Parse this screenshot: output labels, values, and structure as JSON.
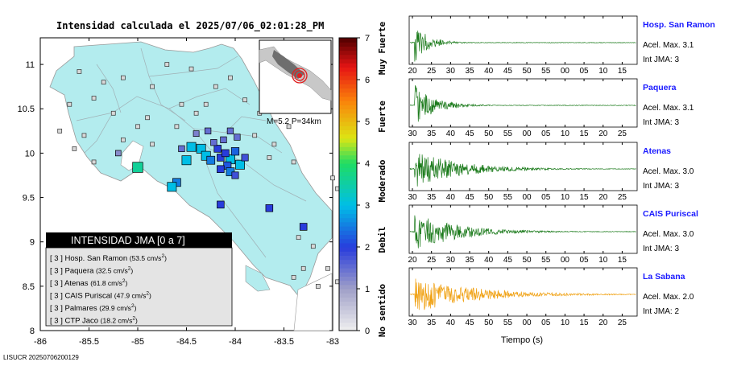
{
  "map": {
    "title": "Intensidad calculada el 2025/07/06_02:01:28_PM",
    "x_ticks": [
      "-86",
      "-85.5",
      "-85",
      "-84.5",
      "-84",
      "-83.5",
      "-83"
    ],
    "y_ticks": [
      "11",
      "10.5",
      "10",
      "9.5",
      "9",
      "8.5",
      "8"
    ],
    "xlim": [
      -86,
      -83
    ],
    "ylim": [
      8,
      11.3
    ],
    "footer": "LISUCR 20250706200129",
    "inset_label": "M=5.2 P=34km"
  },
  "colorbar": {
    "ticks": [
      "0",
      "1",
      "2",
      "3",
      "4",
      "5",
      "6",
      "7"
    ],
    "range": [
      0,
      7
    ],
    "labels": [
      "No sentido",
      "Debil",
      "Moderado",
      "Fuerte",
      "Muy Fuerte"
    ]
  },
  "legend": {
    "title": "INTENSIDAD JMA [0 a 7]",
    "items": [
      {
        "level": "[ 3 ]",
        "name": "Hosp. San Ramon",
        "value": "(53.5 cm/s",
        "unit_sup": "2",
        ")": ")"
      },
      {
        "level": "[ 3 ]",
        "name": "Paquera",
        "value": "(32.5 cm/s",
        "unit_sup": "2",
        ")": ")"
      },
      {
        "level": "[ 3 ]",
        "name": "Atenas",
        "value": "(61.8 cm/s",
        "unit_sup": "2",
        ")": ")"
      },
      {
        "level": "[ 3 ]",
        "name": "CAIS Puriscal",
        "value": "(47.9 cm/s",
        "unit_sup": "2",
        ")": ")"
      },
      {
        "level": "[ 3 ]",
        "name": "Palmares",
        "value": "(29.9 cm/s",
        "unit_sup": "2",
        ")": ")"
      },
      {
        "level": "[ 3 ]",
        "name": "CTP Jaco",
        "value": "(18.2 cm/s",
        "unit_sup": "2",
        ")": ")"
      }
    ]
  },
  "stations_map": [
    {
      "lon": -84.45,
      "lat": 10.07,
      "int": 3
    },
    {
      "lon": -84.35,
      "lat": 10.05,
      "int": 3
    },
    {
      "lon": -84.3,
      "lat": 9.97,
      "int": 3
    },
    {
      "lon": -84.5,
      "lat": 9.92,
      "int": 3
    },
    {
      "lon": -84.05,
      "lat": 9.93,
      "int": 3
    },
    {
      "lon": -83.95,
      "lat": 9.87,
      "int": 3
    },
    {
      "lon": -84.25,
      "lat": 9.92,
      "int": 2.5
    },
    {
      "lon": -84.15,
      "lat": 9.95,
      "int": 2
    },
    {
      "lon": -84.1,
      "lat": 10.0,
      "int": 2
    },
    {
      "lon": -84.0,
      "lat": 10.02,
      "int": 2.3
    },
    {
      "lon": -84.18,
      "lat": 10.05,
      "int": 2
    },
    {
      "lon": -84.08,
      "lat": 9.86,
      "int": 2.2
    },
    {
      "lon": -84.15,
      "lat": 9.82,
      "int": 2
    },
    {
      "lon": -84.05,
      "lat": 9.79,
      "int": 2.5
    },
    {
      "lon": -85.0,
      "lat": 9.84,
      "int": 3.6
    },
    {
      "lon": -84.6,
      "lat": 9.67,
      "int": 2.5
    },
    {
      "lon": -84.65,
      "lat": 9.62,
      "int": 3
    },
    {
      "lon": -84.15,
      "lat": 9.42,
      "int": 2
    },
    {
      "lon": -83.65,
      "lat": 9.38,
      "int": 2
    },
    {
      "lon": -83.3,
      "lat": 9.17,
      "int": 2
    },
    {
      "lon": -84.22,
      "lat": 10.12,
      "int": 1.5
    },
    {
      "lon": -84.12,
      "lat": 10.15,
      "int": 1.5
    },
    {
      "lon": -84.05,
      "lat": 10.25,
      "int": 1.5
    },
    {
      "lon": -83.98,
      "lat": 10.18,
      "int": 1.5
    },
    {
      "lon": -84.28,
      "lat": 10.25,
      "int": 1.5
    },
    {
      "lon": -84.4,
      "lat": 10.22,
      "int": 1.3
    },
    {
      "lon": -84.55,
      "lat": 10.05,
      "int": 1.5
    },
    {
      "lon": -85.2,
      "lat": 10.0,
      "int": 1.2
    },
    {
      "lon": -83.9,
      "lat": 9.95,
      "int": 1.8
    },
    {
      "lon": -84.0,
      "lat": 9.75,
      "int": 1.8
    }
  ],
  "stations_gray": [
    [
      -85.6,
      10.92
    ],
    [
      -85.45,
      10.62
    ],
    [
      -85.35,
      10.8
    ],
    [
      -85.7,
      10.55
    ],
    [
      -85.15,
      10.85
    ],
    [
      -84.85,
      10.75
    ],
    [
      -84.7,
      11.0
    ],
    [
      -84.45,
      10.95
    ],
    [
      -84.2,
      10.75
    ],
    [
      -84.05,
      10.85
    ],
    [
      -83.9,
      10.6
    ],
    [
      -83.75,
      10.45
    ],
    [
      -83.55,
      10.5
    ],
    [
      -83.45,
      10.3
    ],
    [
      -83.6,
      10.1
    ],
    [
      -83.8,
      10.2
    ],
    [
      -85.25,
      10.45
    ],
    [
      -85.55,
      10.2
    ],
    [
      -85.65,
      10.05
    ],
    [
      -85.45,
      9.9
    ],
    [
      -85.8,
      10.25
    ],
    [
      -85.0,
      10.3
    ],
    [
      -84.85,
      10.1
    ],
    [
      -84.9,
      10.4
    ],
    [
      -84.6,
      10.3
    ],
    [
      -83.4,
      9.9
    ],
    [
      -83.0,
      9.72
    ],
    [
      -82.95,
      9.6
    ],
    [
      -83.35,
      9.05
    ],
    [
      -83.2,
      8.95
    ],
    [
      -83.05,
      8.7
    ],
    [
      -83.3,
      8.7
    ],
    [
      -83.4,
      8.6
    ],
    [
      -83.15,
      8.5
    ],
    [
      -82.95,
      8.55
    ],
    [
      -84.4,
      10.45
    ],
    [
      -84.55,
      10.55
    ],
    [
      -84.3,
      10.55
    ],
    [
      -83.65,
      9.95
    ],
    [
      -85.15,
      10.15
    ]
  ],
  "waveforms": {
    "xlabel": "Tiempo (s)",
    "panels": [
      {
        "name": "Hosp. San Ramon",
        "acel": "Acel. Max. 3.1",
        "jma": "Int JMA: 3",
        "color": "#1a7a1a",
        "ticks": [
          "20",
          "25",
          "30",
          "35",
          "40",
          "45",
          "50",
          "55",
          "00",
          "05",
          "10",
          "15"
        ],
        "onset": 0.02,
        "amp": 1.0,
        "decay": 0.06
      },
      {
        "name": "Paquera",
        "acel": "Acel. Max. 3.1",
        "jma": "Int JMA: 3",
        "color": "#1a7a1a",
        "ticks": [
          "30",
          "35",
          "40",
          "45",
          "50",
          "55",
          "00",
          "05",
          "10",
          "15",
          "20",
          "25"
        ],
        "onset": 0.02,
        "amp": 1.0,
        "decay": 0.09
      },
      {
        "name": "Atenas",
        "acel": "Acel. Max. 3.0",
        "jma": "Int JMA: 3",
        "color": "#1a7a1a",
        "ticks": [
          "30",
          "35",
          "40",
          "45",
          "50",
          "55",
          "00",
          "05",
          "10",
          "15",
          "20",
          "25"
        ],
        "onset": 0.02,
        "amp": 0.9,
        "decay": 0.2
      },
      {
        "name": "CAIS Puriscal",
        "acel": "Acel. Max. 3.0",
        "jma": "Int JMA: 3",
        "color": "#1a7a1a",
        "ticks": [
          "20",
          "25",
          "30",
          "35",
          "40",
          "45",
          "50",
          "55",
          "00",
          "05",
          "10",
          "15"
        ],
        "onset": 0.02,
        "amp": 1.0,
        "decay": 0.18
      },
      {
        "name": "La Sabana",
        "acel": "Acel. Max. 2.0",
        "jma": "Int JMA: 2",
        "color": "#f0a010",
        "ticks": [
          "30",
          "35",
          "40",
          "45",
          "50",
          "55",
          "00",
          "05",
          "10",
          "15",
          "20",
          "25"
        ],
        "onset": 0.02,
        "amp": 0.9,
        "decay": 0.25
      }
    ]
  }
}
